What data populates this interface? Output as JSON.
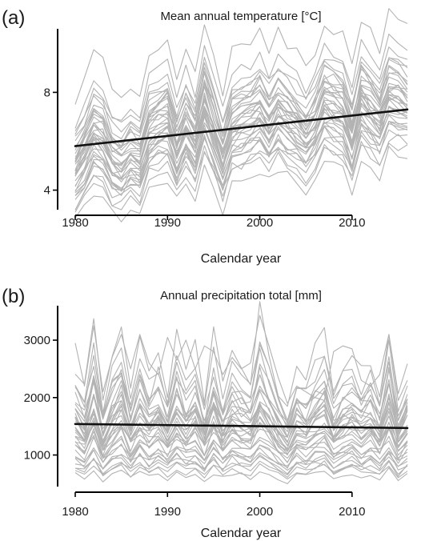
{
  "colors": {
    "series": "#b3b3b3",
    "trend": "#111111",
    "axis": "#000000"
  },
  "chart_data": [
    {
      "type": "line",
      "panel_label": "(a)",
      "title": "Mean annual temperature [°C]",
      "xlabel": "Calendar year",
      "ylabel": "",
      "xlim": [
        1980,
        2016
      ],
      "ylim": [
        3.2,
        10.6
      ],
      "x_ticks": [
        1980,
        1990,
        2000,
        2010
      ],
      "y_ticks": [
        4,
        8
      ],
      "grid": false,
      "legend": "none",
      "x": [
        1980,
        1981,
        1982,
        1983,
        1984,
        1985,
        1986,
        1987,
        1988,
        1989,
        1990,
        1991,
        1992,
        1993,
        1994,
        1995,
        1996,
        1997,
        1998,
        1999,
        2000,
        2001,
        2002,
        2003,
        2004,
        2005,
        2006,
        2007,
        2008,
        2009,
        2010,
        2011,
        2012,
        2013,
        2014,
        2015,
        2016
      ],
      "year_anomalies": [
        -0.9,
        -0.3,
        0.6,
        0.3,
        -0.7,
        -0.9,
        -0.5,
        -0.8,
        0.4,
        0.7,
        0.8,
        -0.4,
        0.5,
        -0.3,
        1.3,
        0.2,
        -1.1,
        0.2,
        0.4,
        0.5,
        0.8,
        0.1,
        0.7,
        0.3,
        -0.1,
        -0.6,
        -0.1,
        0.9,
        0.6,
        0.4,
        -0.8,
        0.8,
        0.3,
        -0.2,
        0.9,
        0.7,
        0.4
      ],
      "site_offsets": [
        -2.4,
        -2.0,
        -1.8,
        -1.6,
        -1.4,
        -1.3,
        -1.2,
        -1.1,
        -1.0,
        -0.9,
        -0.8,
        -0.7,
        -0.6,
        -0.5,
        -0.45,
        -0.4,
        -0.3,
        -0.25,
        -0.2,
        -0.1,
        0.0,
        0.05,
        0.1,
        0.2,
        0.3,
        0.4,
        0.5,
        0.6,
        0.7,
        0.8,
        0.9,
        1.0,
        1.2,
        1.4,
        1.6,
        2.0,
        2.9
      ],
      "series_spread": 0.25,
      "trend": {
        "x": [
          1980,
          2016
        ],
        "y": [
          5.8,
          7.3
        ]
      }
    },
    {
      "type": "line",
      "panel_label": "(b)",
      "title": "Annual precipitation total [mm]",
      "xlabel": "Calendar year",
      "ylabel": "",
      "xlim": [
        1980,
        2016
      ],
      "ylim": [
        450,
        3600
      ],
      "x_ticks": [
        1980,
        1990,
        2000,
        2010
      ],
      "y_ticks": [
        1000,
        2000,
        3000
      ],
      "grid": false,
      "legend": "none",
      "x": [
        1980,
        1981,
        1982,
        1983,
        1984,
        1985,
        1986,
        1987,
        1988,
        1989,
        1990,
        1991,
        1992,
        1993,
        1994,
        1995,
        1996,
        1997,
        1998,
        1999,
        2000,
        2001,
        2002,
        2003,
        2004,
        2005,
        2006,
        2007,
        2008,
        2009,
        2010,
        2011,
        2012,
        2013,
        2014,
        2015,
        2016
      ],
      "year_factors": [
        1.0,
        0.9,
        1.15,
        0.85,
        1.05,
        1.15,
        0.9,
        1.1,
        0.95,
        1.05,
        0.9,
        1.1,
        0.95,
        1.05,
        0.85,
        1.1,
        0.9,
        1.05,
        1.0,
        0.95,
        1.2,
        1.05,
        0.9,
        0.8,
        1.0,
        0.95,
        1.05,
        1.1,
        0.9,
        1.0,
        1.05,
        0.95,
        1.0,
        0.9,
        1.15,
        0.85,
        1.0
      ],
      "site_levels": [
        650,
        720,
        780,
        820,
        870,
        900,
        950,
        1000,
        1050,
        1100,
        1150,
        1200,
        1250,
        1280,
        1320,
        1350,
        1400,
        1430,
        1460,
        1500,
        1540,
        1580,
        1620,
        1660,
        1700,
        1750,
        1800,
        1850,
        1900,
        1950,
        2000,
        2100,
        2200,
        2350,
        2600
      ],
      "peak_series": [
        2950,
        2200,
        3250,
        2100,
        2700,
        3100,
        2500,
        3100,
        2600,
        2400,
        3050,
        2650,
        3000,
        2500,
        2900,
        2800,
        2400,
        2700,
        2500,
        2600,
        3430,
        2900,
        2350,
        1900,
        2200,
        2100,
        2000,
        1950,
        2800,
        2900,
        2850,
        2300,
        2200,
        2400,
        3100,
        1950,
        2300
      ],
      "series_spread": 0.08,
      "trend": {
        "x": [
          1980,
          2016
        ],
        "y": [
          1540,
          1470
        ]
      }
    }
  ]
}
